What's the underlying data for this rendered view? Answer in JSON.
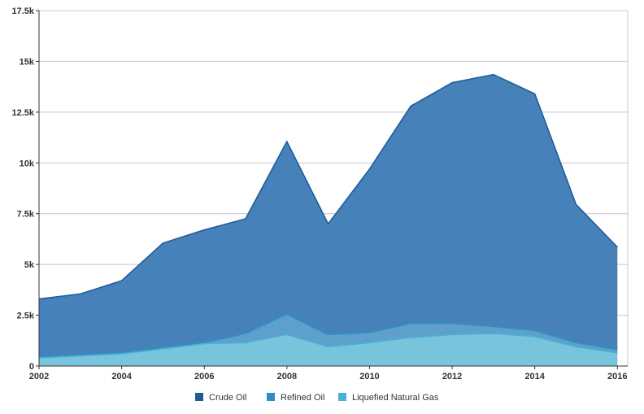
{
  "chart_data": {
    "type": "area",
    "stacked": true,
    "title": "",
    "xlabel": "",
    "ylabel": "",
    "x": [
      2002,
      2003,
      2004,
      2005,
      2006,
      2007,
      2008,
      2009,
      2010,
      2011,
      2012,
      2013,
      2014,
      2015,
      2016
    ],
    "xlim": [
      2002,
      2016.25
    ],
    "ylim": [
      0,
      17500
    ],
    "x_ticks": [
      2002,
      2004,
      2006,
      2008,
      2010,
      2012,
      2014,
      2016
    ],
    "x_tick_labels": [
      "2002",
      "2004",
      "2006",
      "2008",
      "2010",
      "2012",
      "2014",
      "2016"
    ],
    "y_ticks": [
      0,
      2500,
      5000,
      7500,
      10000,
      12500,
      15000,
      17500
    ],
    "y_tick_labels": [
      "0",
      "2.5k",
      "5k",
      "7.5k",
      "10k",
      "12.5k",
      "15k",
      "17.5k"
    ],
    "grid": true,
    "legend_position": "bottom-center",
    "series": [
      {
        "name": "Crude Oil",
        "color": "#1f5c99",
        "fill": "#4682b9",
        "values": [
          2850,
          3000,
          3550,
          5150,
          5550,
          5650,
          8500,
          5450,
          8050,
          10700,
          11850,
          12400,
          11650,
          6800,
          5050
        ]
      },
      {
        "name": "Refined Oil",
        "color": "#2f8fc4",
        "fill": "#5da0cc",
        "values": [
          50,
          50,
          50,
          50,
          50,
          450,
          1000,
          600,
          500,
          700,
          550,
          350,
          300,
          200,
          150
        ]
      },
      {
        "name": "Liquefied Natural Gas",
        "color": "#4ab0d4",
        "fill": "#79c4dd",
        "values": [
          400,
          500,
          600,
          850,
          1100,
          1150,
          1550,
          950,
          1150,
          1400,
          1550,
          1600,
          1450,
          950,
          650
        ]
      }
    ]
  }
}
